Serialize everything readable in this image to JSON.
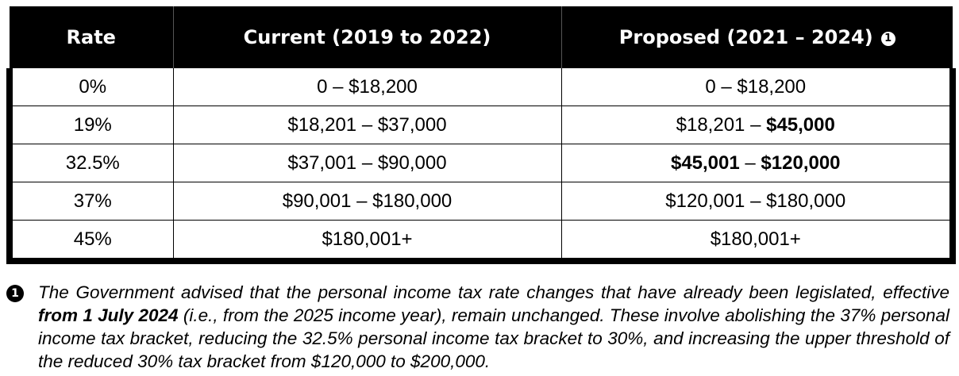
{
  "table": {
    "headers": {
      "rate": "Rate",
      "current": "Current (2019 to 2022)",
      "proposed": "Proposed (2021 – 2024)",
      "note_marker": "1"
    },
    "rows": [
      {
        "rate": "0%",
        "current": "0 – $18,200",
        "proposed_a": "0 – $18,200",
        "proposed_a_bold": false,
        "proposed_sep": "",
        "proposed_b": "",
        "proposed_b_bold": false
      },
      {
        "rate": "19%",
        "current": "$18,201 – $37,000",
        "proposed_a": "$18,201",
        "proposed_a_bold": false,
        "proposed_sep": " – ",
        "proposed_b": "$45,000",
        "proposed_b_bold": true
      },
      {
        "rate": "32.5%",
        "current": "$37,001 – $90,000",
        "proposed_a": "$45,001",
        "proposed_a_bold": true,
        "proposed_sep": " – ",
        "proposed_b": "$120,000",
        "proposed_b_bold": true
      },
      {
        "rate": "37%",
        "current": "$90,001 – $180,000",
        "proposed_a": "$120,001 – $180,000",
        "proposed_a_bold": false,
        "proposed_sep": "",
        "proposed_b": "",
        "proposed_b_bold": false
      },
      {
        "rate": "45%",
        "current": "$180,001+",
        "proposed_a": "$180,001+",
        "proposed_a_bold": false,
        "proposed_sep": "",
        "proposed_b": "",
        "proposed_b_bold": false
      }
    ]
  },
  "footnote": {
    "marker": "1",
    "text_1": "The Government advised that the personal income tax rate changes that have already been legislated, effective ",
    "text_bold": "from 1 July 2024",
    "text_2": " (i.e., from the 2025 income year), remain unchanged.  These involve abolishing the 37% personal income tax bracket, reducing the 32.5% personal income tax bracket to 30%, and increasing the upper threshold of the reduced 30% tax bracket from $120,000 to $200,000."
  }
}
